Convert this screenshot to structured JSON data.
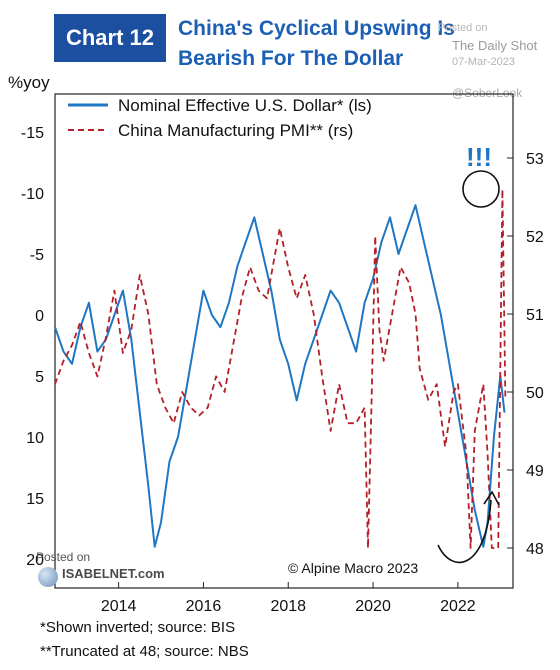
{
  "header": {
    "chart_number": "Chart 12",
    "title_line1": "China's Cyclical Upswing Is",
    "title_line2": "Bearish For The Dollar",
    "posted_on": "Posted on",
    "source_site": "The Daily Shot",
    "date": "07-Mar-2023",
    "handle": "@SoberLook"
  },
  "watermark": {
    "posted_on": "Posted on",
    "site": "ISABELNET.com"
  },
  "copyright": "© Alpine Macro 2023",
  "exclamation": "!!!",
  "footnotes": [
    "*Shown inverted; source: BIS",
    "**Truncated at 48; source: NBS"
  ],
  "colors": {
    "usd_line": "#1f77c4",
    "pmi_line": "#b51f2a",
    "title": "#1c5fb4",
    "badge": "#1c4fa0"
  },
  "chart_data": {
    "type": "line",
    "left_axis_unit": "%yoy",
    "left_axis_inverted": true,
    "left_ylim": [
      20,
      -17
    ],
    "left_ticks": [
      "-15",
      "-10",
      "-5",
      "0",
      "5",
      "10",
      "15",
      "20"
    ],
    "right_ylim": [
      47.4,
      53.8
    ],
    "right_ticks": [
      "48",
      "49",
      "50",
      "51",
      "52",
      "53"
    ],
    "x_range": [
      2012.5,
      2023.3
    ],
    "x_ticks": [
      "2014",
      "2016",
      "2018",
      "2020",
      "2022"
    ],
    "legend_placement": "top-left",
    "series": [
      {
        "name": "Nominal Effective U.S. Dollar* (ls)",
        "axis": "left",
        "style": "solid",
        "x": [
          2012.5,
          2012.7,
          2012.9,
          2013.1,
          2013.3,
          2013.5,
          2013.7,
          2013.9,
          2014.1,
          2014.3,
          2014.5,
          2014.7,
          2014.85,
          2015.0,
          2015.2,
          2015.4,
          2015.6,
          2015.8,
          2016.0,
          2016.2,
          2016.4,
          2016.6,
          2016.8,
          2017.0,
          2017.2,
          2017.4,
          2017.6,
          2017.8,
          2018.0,
          2018.2,
          2018.4,
          2018.6,
          2018.8,
          2019.0,
          2019.2,
          2019.4,
          2019.6,
          2019.8,
          2020.0,
          2020.2,
          2020.4,
          2020.6,
          2020.8,
          2021.0,
          2021.2,
          2021.4,
          2021.6,
          2021.8,
          2022.0,
          2022.2,
          2022.4,
          2022.6,
          2022.7,
          2022.85,
          2023.0,
          2023.1
        ],
        "values": [
          1,
          3,
          4,
          1,
          -1,
          3,
          2,
          0,
          -2,
          2,
          8,
          14,
          19,
          17,
          12,
          10,
          6,
          2,
          -2,
          0,
          1,
          -1,
          -4,
          -6,
          -8,
          -5,
          -2,
          2,
          4,
          7,
          4,
          2,
          0,
          -2,
          -1,
          1,
          3,
          -1,
          -3,
          -6,
          -8,
          -5,
          -7,
          -9,
          -6,
          -3,
          0,
          4,
          8,
          12,
          16,
          19,
          17,
          10,
          5,
          8
        ]
      },
      {
        "name": "China Manufacturing PMI** (rs)",
        "axis": "right",
        "style": "dashed",
        "x": [
          2012.5,
          2012.7,
          2012.9,
          2013.1,
          2013.3,
          2013.5,
          2013.7,
          2013.9,
          2014.1,
          2014.3,
          2014.5,
          2014.7,
          2014.9,
          2015.1,
          2015.3,
          2015.5,
          2015.7,
          2015.9,
          2016.1,
          2016.3,
          2016.5,
          2016.7,
          2016.9,
          2017.1,
          2017.3,
          2017.5,
          2017.7,
          2017.8,
          2018.0,
          2018.2,
          2018.4,
          2018.6,
          2018.8,
          2019.0,
          2019.2,
          2019.4,
          2019.6,
          2019.8,
          2019.88,
          2019.96,
          2020.05,
          2020.15,
          2020.25,
          2020.45,
          2020.65,
          2020.85,
          2021.0,
          2021.1,
          2021.3,
          2021.5,
          2021.7,
          2021.9,
          2022.0,
          2022.2,
          2022.3,
          2022.4,
          2022.6,
          2022.7,
          2022.8,
          2022.95,
          2023.05,
          2023.12
        ],
        "values": [
          50.1,
          50.4,
          50.6,
          50.9,
          50.5,
          50.2,
          50.7,
          51.3,
          50.5,
          50.8,
          51.5,
          51.0,
          50.1,
          49.8,
          49.6,
          50.0,
          49.8,
          49.7,
          49.8,
          50.2,
          50.0,
          50.6,
          51.2,
          51.6,
          51.3,
          51.2,
          51.8,
          52.1,
          51.6,
          51.2,
          51.5,
          51.0,
          50.2,
          49.5,
          50.1,
          49.6,
          49.6,
          49.8,
          48.0,
          49.8,
          52.0,
          50.8,
          50.4,
          51.0,
          51.6,
          51.4,
          51.0,
          50.3,
          49.9,
          50.1,
          49.3,
          50.0,
          50.1,
          49.2,
          48.0,
          49.5,
          50.1,
          49.2,
          48.0,
          48.0,
          52.6,
          49.9
        ]
      }
    ]
  }
}
